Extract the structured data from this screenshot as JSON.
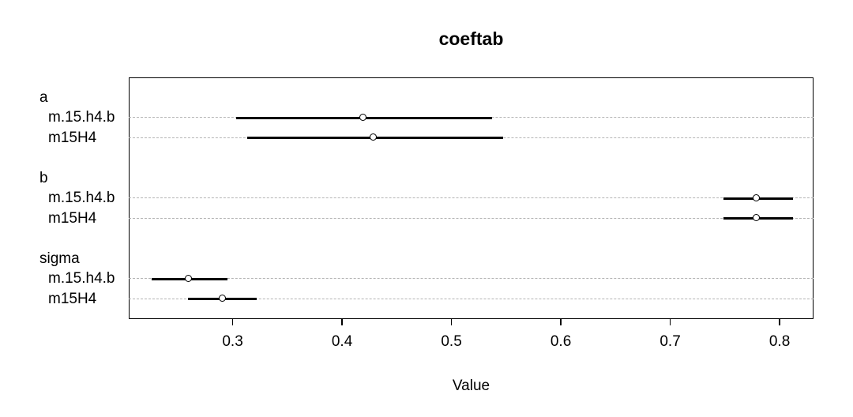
{
  "title": "coeftab",
  "xlabel": "Value",
  "chart_data": {
    "type": "scatter",
    "subtype": "coefficient-interval-plot",
    "title": "coeftab",
    "xlabel": "Value",
    "ylabel": "",
    "xlim": [
      0.205,
      0.831
    ],
    "xticks": [
      0.3,
      0.4,
      0.5,
      0.6,
      0.7,
      0.8
    ],
    "xtick_labels": [
      "0.3",
      "0.4",
      "0.5",
      "0.6",
      "0.7",
      "0.8"
    ],
    "grid": "horizontal dashed gridline per model row",
    "legend": "none",
    "marker": "open-circle",
    "interval_style": "solid black horizontal segment",
    "groups": [
      {
        "label": "a",
        "rows": [
          {
            "label": "m.15.h4.b",
            "mean": 0.42,
            "lo": 0.303,
            "hi": 0.537
          },
          {
            "label": "m15H4",
            "mean": 0.429,
            "lo": 0.313,
            "hi": 0.547
          }
        ]
      },
      {
        "label": "b",
        "rows": [
          {
            "label": "m.15.h4.b",
            "mean": 0.779,
            "lo": 0.749,
            "hi": 0.812
          },
          {
            "label": "m15H4",
            "mean": 0.779,
            "lo": 0.749,
            "hi": 0.812
          }
        ]
      },
      {
        "label": "sigma",
        "rows": [
          {
            "label": "m.15.h4.b",
            "mean": 0.26,
            "lo": 0.226,
            "hi": 0.295
          },
          {
            "label": "m15H4",
            "mean": 0.291,
            "lo": 0.259,
            "hi": 0.322
          }
        ]
      }
    ]
  }
}
